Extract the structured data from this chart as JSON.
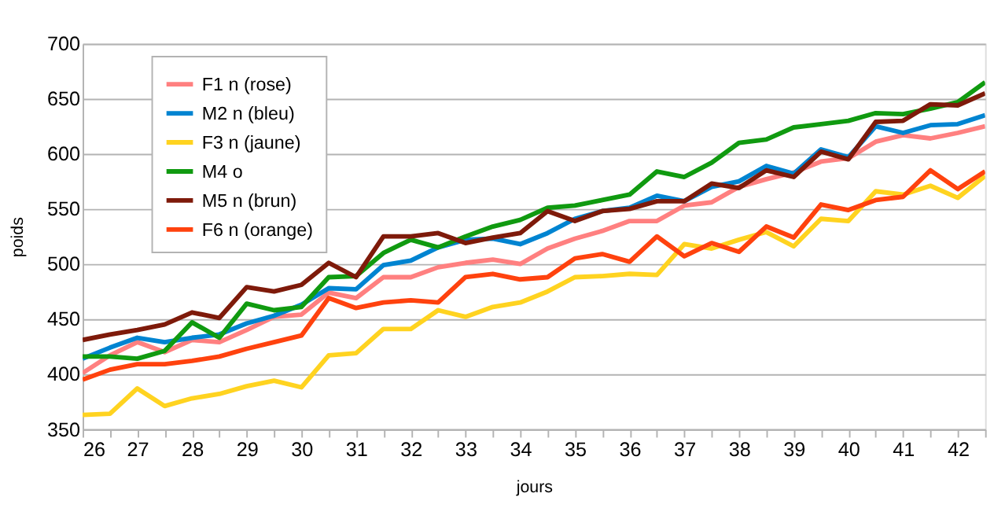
{
  "chart_data": {
    "type": "line",
    "xlabel": "jours",
    "ylabel": "poids",
    "x": [
      26,
      26.5,
      27,
      27.5,
      28,
      28.5,
      29,
      29.5,
      30,
      30.5,
      31,
      31.5,
      32,
      32.5,
      33,
      33.5,
      34,
      34.5,
      35,
      35.5,
      36,
      36.5,
      37,
      37.5,
      38,
      38.5,
      39,
      39.5,
      40,
      40.5,
      41,
      41.5,
      42,
      42.5
    ],
    "xlim": [
      26,
      42.5
    ],
    "xticks": [
      26,
      {
        "value": 26.5,
        "label": null
      },
      27,
      {
        "value": 27.5,
        "label": null
      },
      28,
      {
        "value": 28.5,
        "label": null
      },
      29,
      {
        "value": 29.5,
        "label": null
      },
      30,
      {
        "value": 30.5,
        "label": null
      },
      31,
      {
        "value": 31.5,
        "label": null
      },
      32,
      {
        "value": 32.5,
        "label": null
      },
      33,
      {
        "value": 33.5,
        "label": null
      },
      34,
      {
        "value": 34.5,
        "label": null
      },
      35,
      {
        "value": 35.5,
        "label": null
      },
      36,
      {
        "value": 36.5,
        "label": null
      },
      37,
      {
        "value": 37.5,
        "label": null
      },
      38,
      {
        "value": 38.5,
        "label": null
      },
      39,
      {
        "value": 39.5,
        "label": null
      },
      40,
      {
        "value": 40.5,
        "label": null
      },
      41,
      {
        "value": 41.5,
        "label": null
      },
      42,
      {
        "value": 42.5,
        "label": null
      }
    ],
    "ylim": [
      350,
      700
    ],
    "yticks": [
      350,
      400,
      450,
      500,
      550,
      600,
      650,
      700
    ],
    "grid": "y",
    "legend": "top left",
    "marker": "none",
    "line_style": "solid",
    "series": [
      {
        "name": "F1 n (rose)",
        "color": "#ff8080",
        "values": [
          401,
          417,
          429,
          420,
          431,
          429,
          440,
          452,
          454,
          474,
          469,
          488,
          488,
          497,
          501,
          504,
          500,
          514,
          523,
          530,
          539,
          539,
          553,
          556,
          570,
          577,
          583,
          593,
          596,
          611,
          617,
          614,
          619,
          625
        ]
      },
      {
        "name": "M2 n (bleu)",
        "color": "#0084d1",
        "values": [
          414,
          424,
          433,
          429,
          433,
          436,
          446,
          453,
          463,
          478,
          477,
          499,
          503,
          515,
          522,
          523,
          518,
          528,
          541,
          548,
          551,
          562,
          557,
          570,
          575,
          589,
          582,
          604,
          597,
          625,
          619,
          626,
          627,
          635
        ]
      },
      {
        "name": "F3 n (jaune)",
        "color": "#ffd320",
        "values": [
          363,
          364,
          387,
          371,
          378,
          382,
          389,
          394,
          388,
          417,
          419,
          441,
          441,
          458,
          452,
          461,
          465,
          475,
          488,
          489,
          491,
          490,
          518,
          514,
          522,
          529,
          516,
          541,
          539,
          566,
          563,
          571,
          560,
          580
        ]
      },
      {
        "name": "M4 o",
        "color": "#109a10",
        "values": [
          416,
          416,
          414,
          421,
          447,
          433,
          464,
          458,
          461,
          488,
          489,
          510,
          522,
          515,
          525,
          534,
          540,
          551,
          553,
          558,
          563,
          584,
          579,
          592,
          610,
          613,
          624,
          627,
          630,
          637,
          636,
          641,
          647,
          665
        ]
      },
      {
        "name": "M5 n (brun)",
        "color": "#7e1a0a",
        "values": [
          431,
          436,
          440,
          445,
          456,
          451,
          479,
          475,
          481,
          501,
          488,
          525,
          525,
          528,
          519,
          524,
          528,
          548,
          539,
          548,
          550,
          557,
          557,
          573,
          569,
          585,
          579,
          602,
          595,
          629,
          630,
          645,
          644,
          655
        ]
      },
      {
        "name": "F6 n (orange)",
        "color": "#ff420e",
        "values": [
          395,
          404,
          409,
          409,
          412,
          416,
          423,
          429,
          435,
          469,
          460,
          465,
          467,
          465,
          488,
          491,
          486,
          488,
          505,
          509,
          502,
          525,
          507,
          519,
          511,
          534,
          524,
          554,
          549,
          558,
          561,
          585,
          568,
          584
        ]
      }
    ]
  }
}
